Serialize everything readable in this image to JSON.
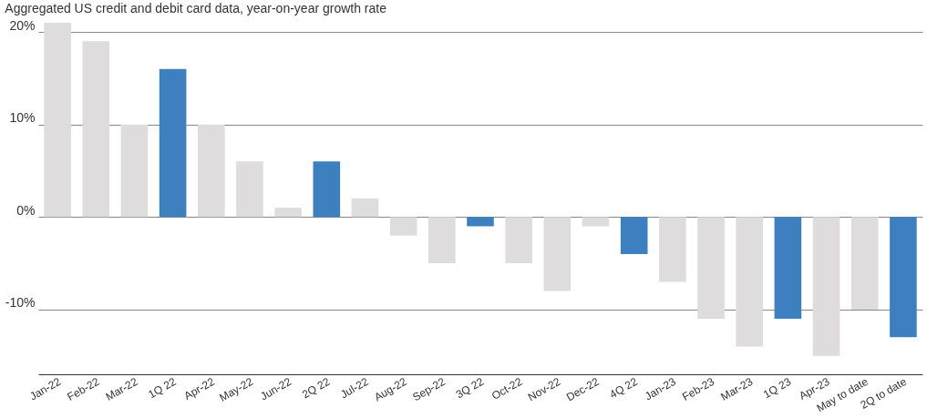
{
  "chart_data": {
    "type": "bar",
    "title": "Aggregated US credit and debit card data, year-on-year growth rate",
    "categories": [
      "Jan-22",
      "Feb-22",
      "Mar-22",
      "1Q 22",
      "Apr-22",
      "May-22",
      "Jun-22",
      "2Q 22",
      "Jul-22",
      "Aug-22",
      "Sep-22",
      "3Q 22",
      "Oct-22",
      "Nov-22",
      "Dec-22",
      "4Q 22",
      "Jan-23",
      "Feb-23",
      "Mar-23",
      "1Q 23",
      "Apr-23",
      "May to date",
      "2Q to date"
    ],
    "values": [
      21,
      19,
      10,
      16,
      10,
      6,
      1,
      6,
      2,
      -2,
      -5,
      -1,
      -5,
      -8,
      -1,
      -4,
      -7,
      -11,
      -14,
      -11,
      -15,
      -10,
      -13
    ],
    "colors": [
      "#dedcdd",
      "#dedcdd",
      "#dedcdd",
      "#3d80c0",
      "#dedcdd",
      "#dedcdd",
      "#dedcdd",
      "#3d80c0",
      "#dedcdd",
      "#dedcdd",
      "#dedcdd",
      "#3d80c0",
      "#dedcdd",
      "#dedcdd",
      "#dedcdd",
      "#3d80c0",
      "#dedcdd",
      "#dedcdd",
      "#dedcdd",
      "#3d80c0",
      "#dedcdd",
      "#dedcdd",
      "#3d80c0"
    ],
    "ylim": [
      -17,
      21
    ],
    "yticks": [
      {
        "value": -10,
        "label": "-10%"
      },
      {
        "value": 0,
        "label": "0%"
      },
      {
        "value": 10,
        "label": "10%"
      },
      {
        "value": 20,
        "label": "20%"
      }
    ],
    "grid": "y"
  }
}
